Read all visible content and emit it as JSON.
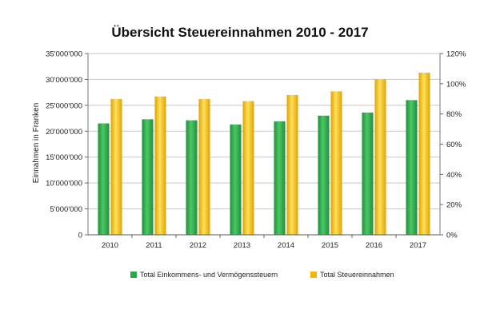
{
  "chart_data": {
    "type": "bar",
    "title": "Übersicht Steuereinnahmen 2010 - 2017",
    "xlabel": "",
    "ylabel": "Einnahmen in Franken",
    "categories": [
      "2010",
      "2011",
      "2012",
      "2013",
      "2014",
      "2015",
      "2016",
      "2017"
    ],
    "ylim": [
      0,
      35000000
    ],
    "y2lim": [
      0,
      120
    ],
    "y_ticks": [
      {
        "value": 0,
        "label": "0"
      },
      {
        "value": 5000000,
        "label": "5'000'000"
      },
      {
        "value": 10000000,
        "label": "10'000'000"
      },
      {
        "value": 15000000,
        "label": "15'000'000"
      },
      {
        "value": 20000000,
        "label": "20'000'000"
      },
      {
        "value": 25000000,
        "label": "25'000'000"
      },
      {
        "value": 30000000,
        "label": "30'000'000"
      },
      {
        "value": 35000000,
        "label": "35'000'000"
      }
    ],
    "y2_ticks": [
      {
        "value": 0,
        "label": "0%"
      },
      {
        "value": 20,
        "label": "20%"
      },
      {
        "value": 40,
        "label": "40%"
      },
      {
        "value": 60,
        "label": "60%"
      },
      {
        "value": 80,
        "label": "80%"
      },
      {
        "value": 100,
        "label": "100%"
      },
      {
        "value": 120,
        "label": "120%"
      }
    ],
    "series": [
      {
        "name": "Total Einkommens- und Vermögenssteuern",
        "color": "#2aa84a",
        "values": [
          21500000,
          22300000,
          22100000,
          21300000,
          21900000,
          23000000,
          23600000,
          26000000
        ]
      },
      {
        "name": "Total Steuereinnahmen",
        "color": "#f2b705",
        "values": [
          26200000,
          26700000,
          26200000,
          25800000,
          27000000,
          27700000,
          30000000,
          31300000
        ]
      }
    ],
    "grid": true,
    "legend_position": "bottom"
  }
}
